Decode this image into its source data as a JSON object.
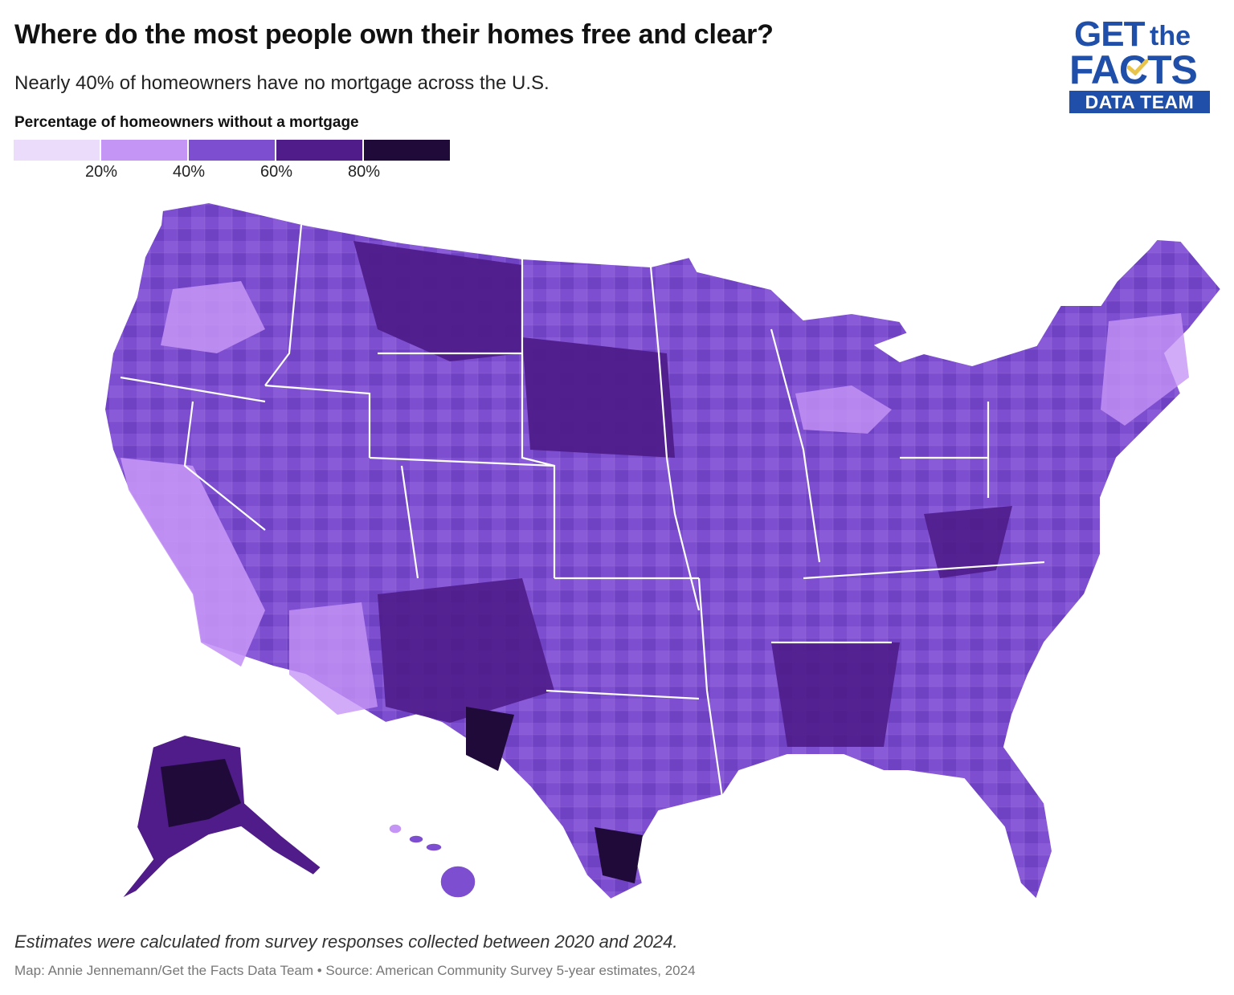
{
  "header": {
    "title": "Where do the most people own their homes free and clear?",
    "subtitle": "Nearly 40% of homeowners have no mortgage across the U.S."
  },
  "logo": {
    "line1": "GET",
    "line1b": "the",
    "line2": "FACTS",
    "line3": "DATA TEAM",
    "color": "#1f4fa8",
    "accent": "#e8c54a"
  },
  "legend": {
    "title": "Percentage of homeowners without a mortgage",
    "colors": [
      "#ecdcfb",
      "#c595f6",
      "#7d4fd0",
      "#4f1c8a",
      "#200a3a"
    ],
    "ticks": [
      "20%",
      "40%",
      "60%",
      "80%"
    ]
  },
  "map": {
    "border_color": "#ffffff"
  },
  "footer": {
    "note": "Estimates were calculated from survey responses collected between 2020 and 2024.",
    "credit": "Map: Annie Jennemann/Get the Facts Data Team • Source: American Community Survey 5-year estimates, 2024"
  }
}
